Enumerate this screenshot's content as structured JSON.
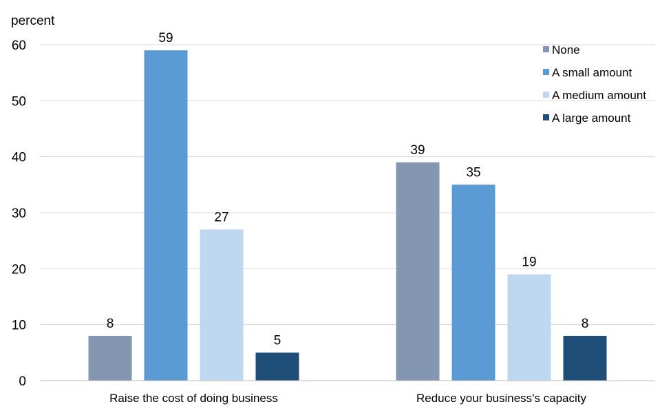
{
  "chart_data": {
    "type": "bar",
    "title": "",
    "ylabel": "percent",
    "xlabel": "",
    "ylim": [
      0,
      60
    ],
    "yticks": [
      0,
      10,
      20,
      30,
      40,
      50,
      60
    ],
    "grid": true,
    "legend_position": "top-right",
    "categories": [
      "Raise the cost of doing business",
      "Reduce your business's capacity"
    ],
    "series": [
      {
        "name": "None",
        "color": "#8497B0",
        "values": [
          8,
          39
        ]
      },
      {
        "name": "A small amount",
        "color": "#5B9BD5",
        "values": [
          59,
          35
        ]
      },
      {
        "name": "A medium amount",
        "color": "#BDD7EE",
        "values": [
          27,
          19
        ]
      },
      {
        "name": "A large amount",
        "color": "#1F4E79",
        "values": [
          5,
          8
        ]
      }
    ]
  }
}
